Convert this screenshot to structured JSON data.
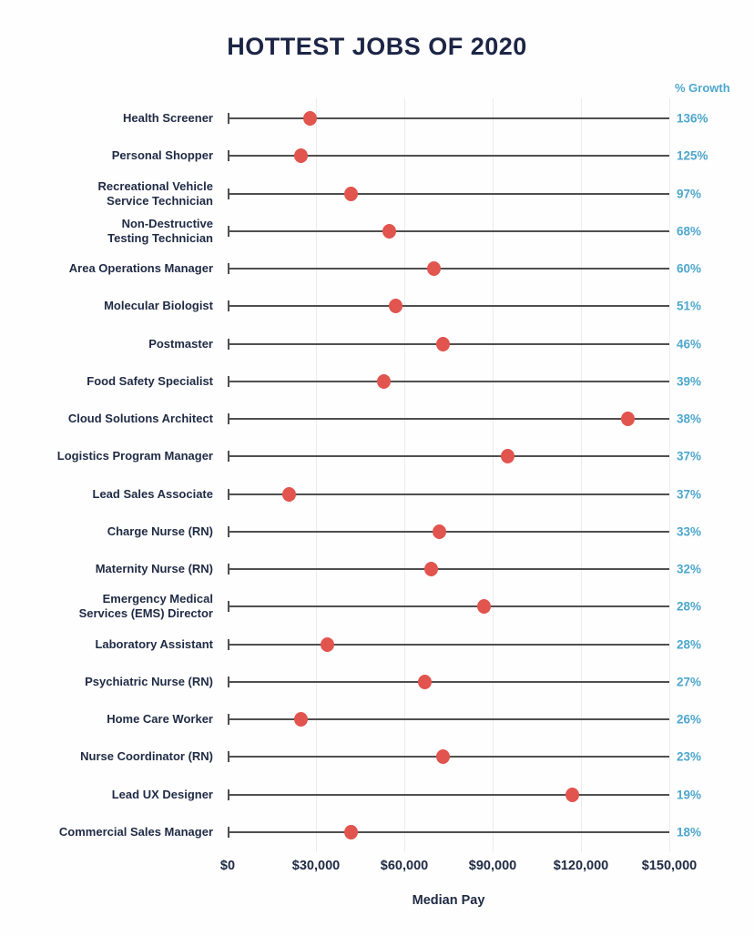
{
  "title": "HOTTEST JOBS OF 2020",
  "growth_column_header": "% Growth",
  "x_axis_label": "Median Pay",
  "colors": {
    "dot": "#e2544e",
    "growth_text": "#4ea7cd",
    "navy_text": "#1f2a44",
    "line": "#4f4f4f",
    "gridline": "#ececec"
  },
  "chart_data": {
    "type": "scatter",
    "variant": "lollipop",
    "title": "HOTTEST JOBS OF 2020",
    "xlabel": "Median Pay",
    "ylabel": "",
    "legend": "none",
    "grid": "vertical-light",
    "x_axis": {
      "min": 0,
      "max": 150000,
      "tick_values": [
        0,
        30000,
        60000,
        90000,
        120000,
        150000
      ],
      "tick_labels": [
        "$0",
        "$30,000",
        "$60,000",
        "$90,000",
        "$120,000",
        "$150,000"
      ]
    },
    "secondary_column": "% Growth",
    "jobs": [
      {
        "label": "Health Screener",
        "median_pay": 28000,
        "growth": "136%"
      },
      {
        "label": "Personal Shopper",
        "median_pay": 25000,
        "growth": "125%"
      },
      {
        "label": "Recreational Vehicle\nService Technician",
        "median_pay": 42000,
        "growth": "97%"
      },
      {
        "label": "Non-Destructive\nTesting Technician",
        "median_pay": 55000,
        "growth": "68%"
      },
      {
        "label": "Area Operations Manager",
        "median_pay": 70000,
        "growth": "60%"
      },
      {
        "label": "Molecular Biologist",
        "median_pay": 57000,
        "growth": "51%"
      },
      {
        "label": "Postmaster",
        "median_pay": 73000,
        "growth": "46%"
      },
      {
        "label": "Food Safety Specialist",
        "median_pay": 53000,
        "growth": "39%"
      },
      {
        "label": "Cloud Solutions Architect",
        "median_pay": 136000,
        "growth": "38%"
      },
      {
        "label": "Logistics Program Manager",
        "median_pay": 95000,
        "growth": "37%"
      },
      {
        "label": "Lead Sales Associate",
        "median_pay": 21000,
        "growth": "37%"
      },
      {
        "label": "Charge Nurse (RN)",
        "median_pay": 72000,
        "growth": "33%"
      },
      {
        "label": "Maternity Nurse (RN)",
        "median_pay": 69000,
        "growth": "32%"
      },
      {
        "label": "Emergency Medical\nServices (EMS) Director",
        "median_pay": 87000,
        "growth": "28%"
      },
      {
        "label": "Laboratory Assistant",
        "median_pay": 34000,
        "growth": "28%"
      },
      {
        "label": "Psychiatric Nurse (RN)",
        "median_pay": 67000,
        "growth": "27%"
      },
      {
        "label": "Home Care Worker",
        "median_pay": 25000,
        "growth": "26%"
      },
      {
        "label": "Nurse Coordinator (RN)",
        "median_pay": 73000,
        "growth": "23%"
      },
      {
        "label": "Lead UX Designer",
        "median_pay": 117000,
        "growth": "19%"
      },
      {
        "label": "Commercial Sales Manager",
        "median_pay": 42000,
        "growth": "18%"
      }
    ]
  }
}
